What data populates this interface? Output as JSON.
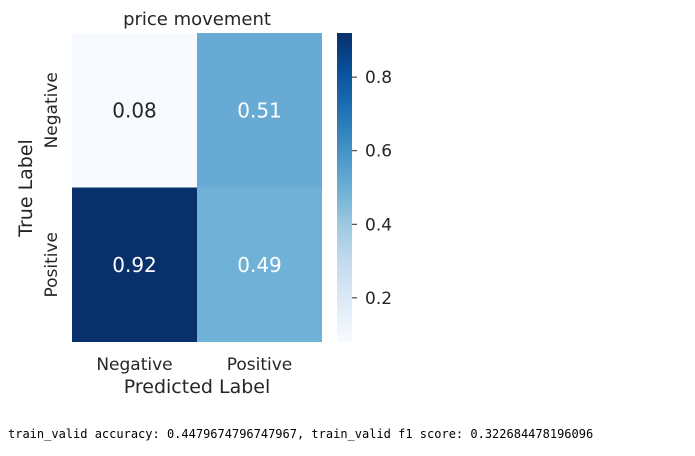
{
  "chart_data": {
    "type": "heatmap",
    "title": "price movement",
    "xlabel": "Predicted Label",
    "ylabel": "True Label",
    "x_categories": [
      "Negative",
      "Positive"
    ],
    "y_categories": [
      "Negative",
      "Positive"
    ],
    "values": [
      [
        0.08,
        0.51
      ],
      [
        0.92,
        0.49
      ]
    ],
    "colormap": "Blues",
    "colorbar_range": [
      0.08,
      0.92
    ],
    "colorbar_ticks": [
      0.2,
      0.4,
      0.6,
      0.8
    ]
  },
  "footer_text": "train_valid accuracy: 0.4479674796747967, train_valid f1 score: 0.322684478196096"
}
